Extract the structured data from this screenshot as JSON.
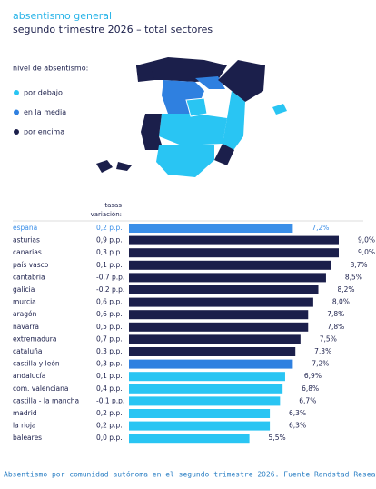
{
  "chart_data": {
    "type": "bar",
    "title": "absentismo general",
    "subtitle": "segundo trimestre 2026 – total sectores",
    "legend_title": "nivel de absentismo:",
    "legend": [
      {
        "name": "por debajo",
        "color": "#29c5f3"
      },
      {
        "name": "en la media",
        "color": "#2f80e0"
      },
      {
        "name": "por encima",
        "color": "#1b1f4b"
      }
    ],
    "variation_header": [
      "tasas",
      "variación:"
    ],
    "categories": [
      "españa",
      "asturias",
      "canarias",
      "país vasco",
      "cantabria",
      "galicia",
      "murcia",
      "aragón",
      "navarra",
      "extremadura",
      "cataluña",
      "castilla y león",
      "andalucía",
      "com. valenciana",
      "castilla - la mancha",
      "madrid",
      "la rioja",
      "baleares"
    ],
    "variations": [
      "0,2 p.p.",
      "0,9 p.p.",
      "0,3 p.p.",
      "0,1 p.p.",
      "-0,7 p.p.",
      "-0,2 p.p.",
      "0,6 p.p.",
      "0,6 p.p.",
      "0,5 p.p.",
      "0,7 p.p.",
      "0,3 p.p.",
      "0,3 p.p.",
      "0,1 p.p.",
      "0,4 p.p.",
      "-0,1 p.p.",
      "0,2 p.p.",
      "0,2 p.p.",
      "0,0 p.p."
    ],
    "values": [
      7.2,
      9.0,
      9.0,
      8.7,
      8.5,
      8.2,
      8.0,
      7.8,
      7.8,
      7.5,
      7.3,
      7.2,
      6.9,
      6.8,
      6.7,
      6.3,
      6.3,
      5.5
    ],
    "value_labels": [
      "7,2%",
      "9,0%",
      "9,0%",
      "8,7%",
      "8,5%",
      "8,2%",
      "8,0%",
      "7,8%",
      "7,8%",
      "7,5%",
      "7,3%",
      "7,2%",
      "6,9%",
      "6,8%",
      "6,7%",
      "6,3%",
      "6,3%",
      "5,5%"
    ],
    "colors": [
      "#3b8fe8",
      "#1b1f4b",
      "#1b1f4b",
      "#1b1f4b",
      "#1b1f4b",
      "#1b1f4b",
      "#1b1f4b",
      "#1b1f4b",
      "#1b1f4b",
      "#1b1f4b",
      "#1b1f4b",
      "#2f80e0",
      "#29c5f3",
      "#29c5f3",
      "#29c5f3",
      "#29c5f3",
      "#29c5f3",
      "#29c5f3"
    ],
    "caption": "Absentismo por comunidad autónoma en el segundo trimestre 2026. Fuente Randstad Resea"
  }
}
